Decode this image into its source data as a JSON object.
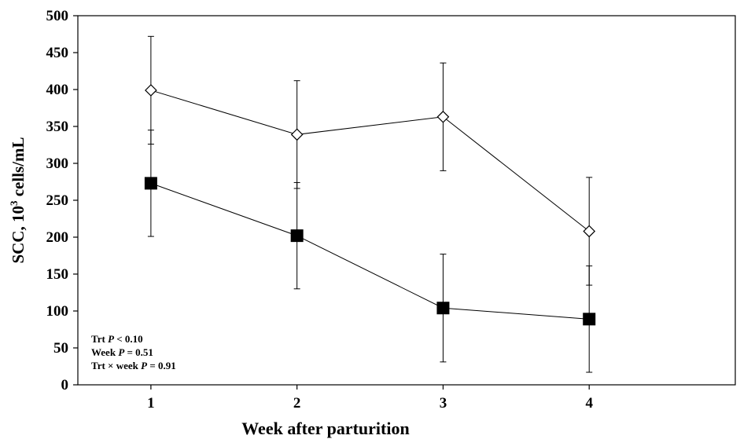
{
  "chart_data": {
    "type": "line",
    "xlabel": "Week after parturition",
    "ylabel_main": "SCC, 10",
    "ylabel_sup": "3",
    "ylabel_tail": " cells/mL",
    "x": [
      1,
      2,
      3,
      4
    ],
    "x_tick_labels": [
      "1",
      "2",
      "3",
      "4"
    ],
    "xlim": [
      0.5,
      5.0
    ],
    "ylim": [
      0,
      500
    ],
    "y_ticks": [
      0,
      50,
      100,
      150,
      200,
      250,
      300,
      350,
      400,
      450,
      500
    ],
    "grid": false,
    "legend": "none",
    "series": [
      {
        "marker": "open-diamond",
        "color": "#000000",
        "values": [
          399,
          339,
          363,
          208
        ],
        "error": [
          73,
          73,
          73,
          73
        ]
      },
      {
        "marker": "filled-square",
        "color": "#000000",
        "values": [
          273,
          202,
          104,
          89
        ],
        "error": [
          72,
          72,
          73,
          72
        ]
      }
    ],
    "annotations": [
      {
        "pre": "Trt ",
        "italic": "P",
        "post": " < 0.10"
      },
      {
        "pre": "Week ",
        "italic": "P",
        "post": " = 0.51"
      },
      {
        "pre": "Trt × week ",
        "italic": "P",
        "post": " = 0.91"
      }
    ]
  }
}
